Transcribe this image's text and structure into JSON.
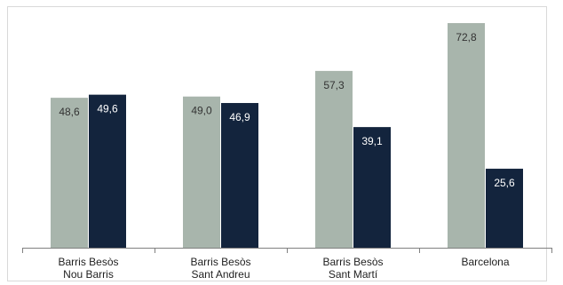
{
  "chart_data": {
    "type": "bar",
    "categories": [
      [
        "Barris Besòs",
        "Nou Barris"
      ],
      [
        "Barris Besòs",
        "Sant Andreu"
      ],
      [
        "Barris Besòs",
        "Sant Martí"
      ],
      [
        "Barcelona"
      ]
    ],
    "series": [
      {
        "values": [
          48.6,
          49.0,
          57.3,
          72.8
        ],
        "labels": [
          "48,6",
          "49,0",
          "57,3",
          "72,8"
        ],
        "color": "#a8b5ac",
        "label_color": "#333333"
      },
      {
        "values": [
          49.6,
          46.9,
          39.1,
          25.6
        ],
        "labels": [
          "49,6",
          "46,9",
          "39,1",
          "25,6"
        ],
        "color": "#13243d",
        "label_color": "#ffffff"
      }
    ],
    "ylim": [
      0,
      80
    ],
    "grid": false,
    "legend": "none",
    "title": "",
    "xlabel": "",
    "ylabel": ""
  }
}
